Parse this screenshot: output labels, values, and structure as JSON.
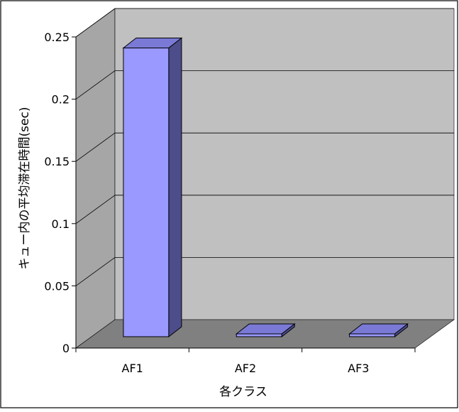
{
  "chart_data": {
    "type": "bar",
    "title": "",
    "categories": [
      "AF1",
      "AF2",
      "AF3"
    ],
    "values": [
      0.232,
      0.001,
      0.001
    ],
    "xlabel": "各クラス",
    "ylabel": "キュー内の平均滞在時間(sec)",
    "ylim": [
      0,
      0.25
    ],
    "yticks": [
      0,
      0.05,
      0.1,
      0.15,
      0.2,
      0.25
    ],
    "ytick_labels": [
      "0",
      "0.05",
      "0.1",
      "0.15",
      "0.2",
      "0.25"
    ],
    "grid": true,
    "legend": "none",
    "style": "3d-column",
    "colors": {
      "bar_front": "#9999ff",
      "bar_top": "#7a7ad6",
      "bar_side": "#4d4d8c",
      "back_wall": "#c0c0c0",
      "side_wall": "#a6a6a6",
      "floor": "#808080",
      "gridline": "#000000"
    }
  }
}
